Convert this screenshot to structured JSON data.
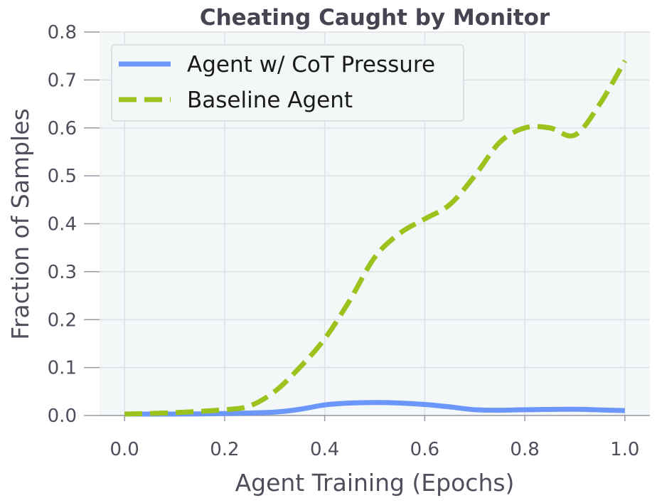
{
  "chart_data": {
    "type": "line",
    "title": "Cheating Caught by Monitor",
    "xlabel": "Agent Training (Epochs)",
    "ylabel": "Fraction of Samples",
    "xlim": [
      -0.05,
      1.05
    ],
    "ylim": [
      0,
      0.8
    ],
    "xticks": [
      "0.0",
      "0.2",
      "0.4",
      "0.6",
      "0.8",
      "1.0"
    ],
    "yticks": [
      "0.0",
      "0.1",
      "0.2",
      "0.3",
      "0.4",
      "0.5",
      "0.6",
      "0.7",
      "0.8"
    ],
    "grid": true,
    "legend_position": "top-left",
    "series": [
      {
        "name": "Agent w/ CoT Pressure",
        "style": "solid",
        "color": "#6b96fa",
        "x": [
          0.0,
          0.1,
          0.2,
          0.3,
          0.35,
          0.4,
          0.45,
          0.5,
          0.55,
          0.6,
          0.65,
          0.7,
          0.75,
          0.8,
          0.9,
          1.0
        ],
        "y": [
          0.003,
          0.003,
          0.004,
          0.007,
          0.013,
          0.022,
          0.026,
          0.027,
          0.026,
          0.023,
          0.018,
          0.012,
          0.011,
          0.012,
          0.013,
          0.01
        ]
      },
      {
        "name": "Baseline Agent",
        "style": "dashed",
        "color": "#9cc21e",
        "x": [
          0.0,
          0.1,
          0.2,
          0.25,
          0.3,
          0.35,
          0.4,
          0.45,
          0.5,
          0.55,
          0.6,
          0.65,
          0.7,
          0.75,
          0.8,
          0.85,
          0.9,
          0.95,
          1.0
        ],
        "y": [
          0.003,
          0.006,
          0.012,
          0.02,
          0.05,
          0.1,
          0.16,
          0.24,
          0.33,
          0.38,
          0.41,
          0.44,
          0.5,
          0.57,
          0.6,
          0.6,
          0.585,
          0.65,
          0.74
        ]
      }
    ]
  }
}
